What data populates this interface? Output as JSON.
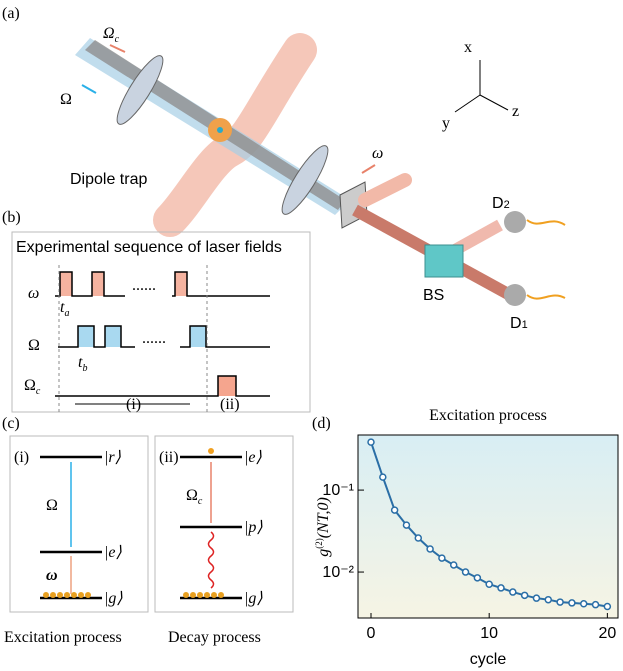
{
  "panel_a": {
    "label": "(a)",
    "omega_c": {
      "main": "Ω",
      "sub": "c"
    },
    "Omega": "Ω",
    "dipole_trap": "Dipole trap",
    "omega": "ω",
    "axes": [
      "x",
      "y",
      "z"
    ],
    "d2": {
      "main": "D",
      "sub": "2"
    },
    "d1": {
      "main": "D",
      "sub": "1"
    },
    "bs": "BS"
  },
  "panel_b": {
    "label": "(b)",
    "title": "Experimental sequence of laser fields",
    "row_omega": "ω",
    "row_Omega": "Ω",
    "row_Omega_c": {
      "main": "Ω",
      "sub": "c"
    },
    "ta": {
      "main": "t",
      "sub": "a"
    },
    "tb": {
      "main": "t",
      "sub": "b"
    },
    "dots": [
      "......",
      "......"
    ],
    "stage_i": "(i)",
    "stage_ii": "(ii)"
  },
  "panel_c": {
    "label": "(c)",
    "left": {
      "tag": "(i)",
      "r": "|r⟩",
      "Omega": "Ω",
      "e": "|e⟩",
      "omega": "ω",
      "g": "|g⟩",
      "caption": "Excitation process"
    },
    "right": {
      "tag": "(ii)",
      "e": "|e⟩",
      "Omega_c": {
        "main": "Ω",
        "sub": "c"
      },
      "p": "|p⟩",
      "g": "|g⟩",
      "caption": "Decay process"
    }
  },
  "panel_d": {
    "label": "(d)"
  },
  "chart_data": {
    "type": "line",
    "title": "Excitation process",
    "xlabel": "cycle",
    "ylabel": {
      "base": "g",
      "sup": "(2)",
      "arg": "(NT,0)"
    },
    "x": [
      0,
      1,
      2,
      3,
      4,
      5,
      6,
      7,
      8,
      9,
      10,
      11,
      12,
      13,
      14,
      15,
      16,
      17,
      18,
      19,
      20
    ],
    "values": [
      0.385,
      0.144,
      0.057,
      0.0374,
      0.026,
      0.0191,
      0.0148,
      0.0122,
      0.01,
      0.0085,
      0.0071,
      0.0064,
      0.0057,
      0.0052,
      0.0048,
      0.0046,
      0.0043,
      0.0042,
      0.0041,
      0.004,
      0.0038
    ],
    "color": "#2a6ea6",
    "log_y": true,
    "background": [
      "#d8eef4",
      "#f6f4e4"
    ],
    "xlim": [
      -1.1,
      20.9
    ],
    "ylim": [
      0.00275,
      0.47
    ],
    "xticks": [
      0,
      10,
      20
    ],
    "yticks": [
      {
        "value": 0.1,
        "label": "10⁻¹"
      },
      {
        "value": 0.01,
        "label": "10⁻²"
      }
    ]
  }
}
